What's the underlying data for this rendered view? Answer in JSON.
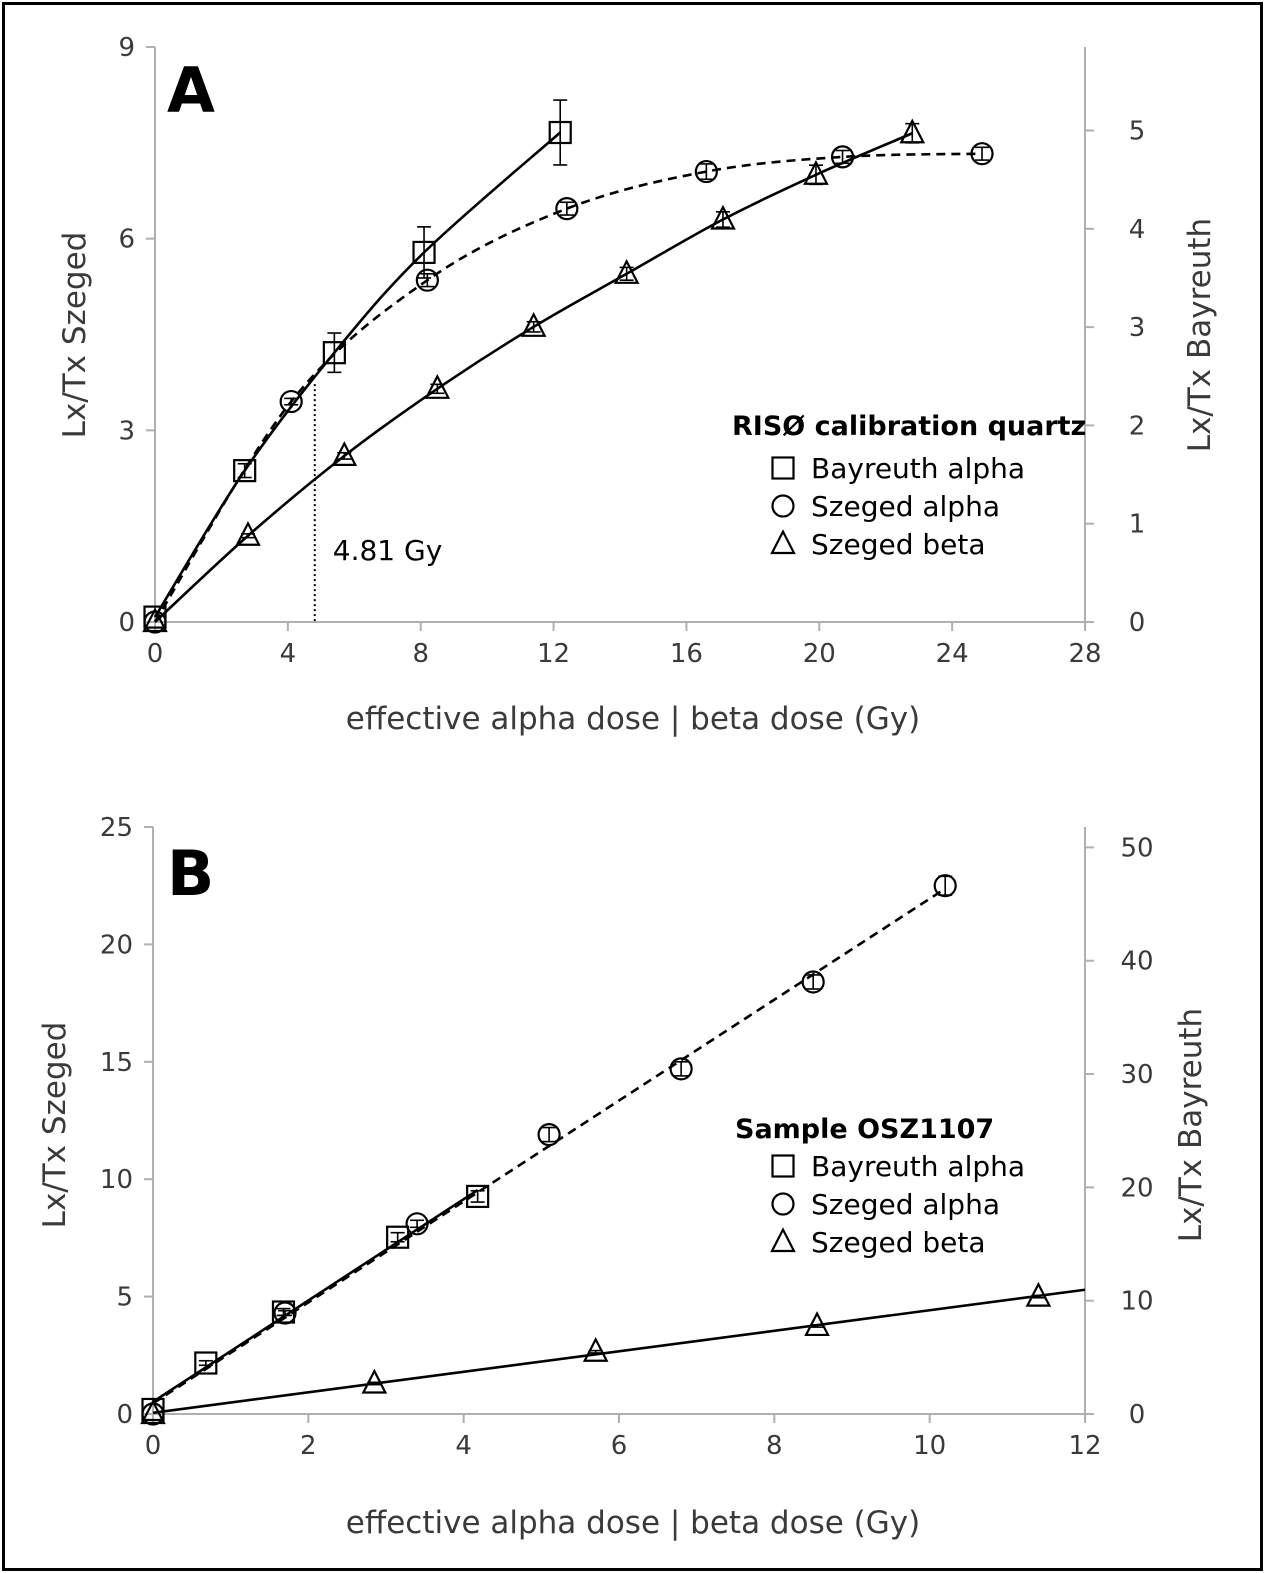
{
  "chart_data": [
    {
      "type": "scatter",
      "panel": "A",
      "xlabel": "effective alpha dose | beta dose (Gy)",
      "ylabel": "Lx/Tx Szeged",
      "y2label": "Lx/Tx Bayreuth",
      "xlim": [
        0,
        28
      ],
      "ylim": [
        0,
        9
      ],
      "y2lim": [
        0,
        5.85
      ],
      "xticks": [
        "0",
        "4",
        "8",
        "12",
        "16",
        "20",
        "24",
        "28"
      ],
      "yticks": [
        "0",
        "3",
        "6",
        "9"
      ],
      "y2ticks": [
        "0",
        "1",
        "2",
        "3",
        "4",
        "5"
      ],
      "legend_title": "RISØ calibration quartz",
      "legend_placement": "right",
      "annotation": {
        "text": "4.81 Gy",
        "x": 4.81
      },
      "series": [
        {
          "name": "Bayreuth alpha",
          "marker": "square",
          "axis": "right",
          "fit": "solid",
          "x": [
            0,
            2.7,
            5.4,
            8.1,
            12.2
          ],
          "y": [
            0.05,
            1.54,
            2.74,
            3.76,
            4.98
          ],
          "err": [
            0,
            0.07,
            0.2,
            0.26,
            0.33
          ]
        },
        {
          "name": "Szeged alpha",
          "marker": "circle",
          "axis": "left",
          "fit": "dashed",
          "x": [
            0,
            4.1,
            8.2,
            12.4,
            16.6,
            20.7,
            24.9
          ],
          "y": [
            0.0,
            3.45,
            5.35,
            6.47,
            7.05,
            7.28,
            7.33
          ],
          "err": [
            0,
            0.05,
            0.1,
            0.1,
            0.12,
            0.1,
            0.1
          ]
        },
        {
          "name": "Szeged beta",
          "marker": "triangle",
          "axis": "left",
          "fit": "solid",
          "x": [
            0,
            2.8,
            5.7,
            8.5,
            11.4,
            14.2,
            17.1,
            19.9,
            22.8
          ],
          "y": [
            0.0,
            1.35,
            2.6,
            3.65,
            4.62,
            5.45,
            6.3,
            7.0,
            7.65
          ],
          "err": [
            0,
            0.03,
            0.05,
            0.07,
            0.08,
            0.1,
            0.12,
            0.15,
            0.15
          ]
        }
      ]
    },
    {
      "type": "scatter",
      "panel": "B",
      "xlabel": "effective alpha dose | beta dose (Gy)",
      "ylabel": "Lx/Tx  Szeged",
      "y2label": "Lx/Tx Bayreuth",
      "xlim": [
        0,
        12
      ],
      "ylim": [
        0,
        25
      ],
      "y2lim": [
        0,
        51.8
      ],
      "xticks": [
        "0",
        "2",
        "4",
        "6",
        "8",
        "10",
        "12"
      ],
      "yticks": [
        "0",
        "5",
        "10",
        "15",
        "20",
        "25"
      ],
      "y2ticks": [
        "0",
        "10",
        "20",
        "30",
        "40",
        "50"
      ],
      "legend_title": "Sample OSZ1107",
      "legend_placement": "right",
      "series": [
        {
          "name": "Bayreuth alpha",
          "marker": "square",
          "axis": "right",
          "fit": "solid",
          "x": [
            0,
            0.68,
            1.68,
            3.15,
            4.18
          ],
          "y": [
            0.4,
            4.5,
            9.0,
            15.6,
            19.2
          ],
          "err": [
            0,
            0.2,
            0.3,
            0.4,
            0.5
          ]
        },
        {
          "name": "Szeged alpha",
          "marker": "circle",
          "axis": "left",
          "fit": "dashed",
          "x": [
            0,
            1.7,
            3.4,
            5.1,
            6.8,
            8.5,
            10.2
          ],
          "y": [
            0.0,
            4.3,
            8.1,
            11.9,
            14.7,
            18.4,
            22.5
          ],
          "err": [
            0,
            0.1,
            0.15,
            0.3,
            0.3,
            0.3,
            0.4
          ]
        },
        {
          "name": "Szeged beta",
          "marker": "triangle",
          "axis": "left",
          "fit": "solid",
          "x": [
            0,
            2.85,
            5.7,
            8.55,
            11.4
          ],
          "y": [
            0.0,
            1.3,
            2.65,
            3.75,
            5.0
          ],
          "err": [
            0,
            0.05,
            0.05,
            0.05,
            0.05
          ]
        }
      ]
    }
  ]
}
